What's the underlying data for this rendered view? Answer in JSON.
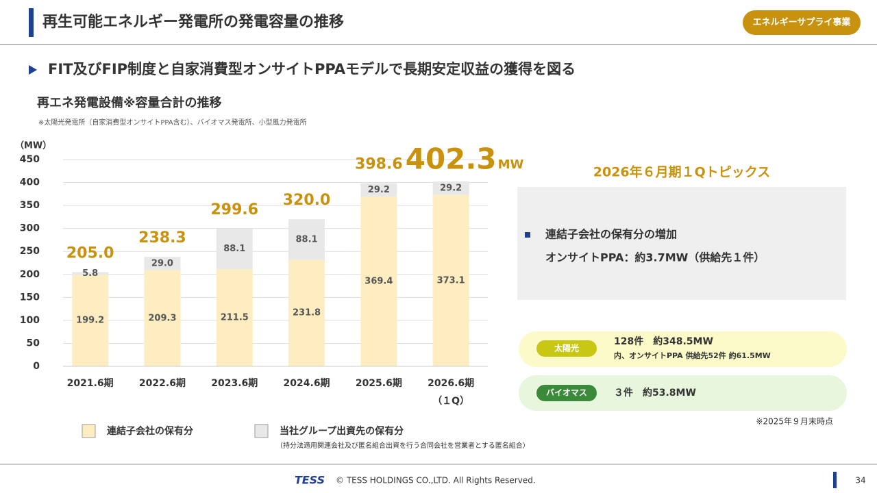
{
  "header": {
    "title": "再生可能エネルギー発電所の発電容量の推移",
    "badge": "エネルギーサプライ事業"
  },
  "subtitle": "FIT及びFIP制度と自家消費型オンサイトPPAモデルで長期安定収益の獲得を図る",
  "chart_data": {
    "type": "stacked-bar",
    "title": "再エネ発電設備※容量合計の推移",
    "footnote": "※太陽光発電所（自家消費型オンサイトPPA含む）、バイオマス発電所、小型風力発電所",
    "y_label": "（MW）",
    "categories": [
      "2021.6期",
      "2022.6期",
      "2023.6期",
      "2024.6期",
      "2025.6期",
      "2026.6期（１Q）"
    ],
    "series": [
      {
        "name": "連結子会社の保有分",
        "color": "#fdedc0",
        "values": [
          199.2,
          209.3,
          211.5,
          231.8,
          369.4,
          373.1
        ]
      },
      {
        "name": "当社グループ出資先の保有分",
        "color": "#e8e8e8",
        "values": [
          5.8,
          29.0,
          88.1,
          88.1,
          29.2,
          29.2
        ],
        "value_labels": [
          "5.8",
          "29.0",
          "88.1",
          "88.1",
          "29.2",
          "29.2"
        ]
      }
    ],
    "totals": [
      205.0,
      238.3,
      299.6,
      320.0,
      398.6,
      402.3
    ],
    "total_labels": [
      "205.0",
      "238.3",
      "299.6",
      "320.0",
      "398.6",
      "402.3"
    ],
    "total_unit": "MW",
    "ylim": [
      0,
      450
    ],
    "yticks": [
      0,
      50,
      100,
      150,
      200,
      250,
      300,
      350,
      400,
      450
    ],
    "grid": true,
    "legend_note": "（持分法適用関連会社及び匿名組合出資を行う合同会社を営業者とする匿名組合）"
  },
  "topics": {
    "title": "2026年６月期１Qトピックス",
    "lines": [
      "連結子会社の保有分の増加",
      "オンサイトPPA：約3.7MW（供給先１件）"
    ]
  },
  "facilities": [
    {
      "label": "太陽光",
      "lines": [
        "128件　約348.5MW",
        "内、オンサイトPPA 供給先52件 約61.5MW"
      ]
    },
    {
      "label": "バイオマス",
      "lines": [
        "３件　約53.8MW"
      ]
    }
  ],
  "as_of": "※2025年９月末時点",
  "footer": {
    "logo": "TESS",
    "copyright": "© TESS HOLDINGS CO.,LTD. All Rights Reserved.",
    "page": "34"
  }
}
